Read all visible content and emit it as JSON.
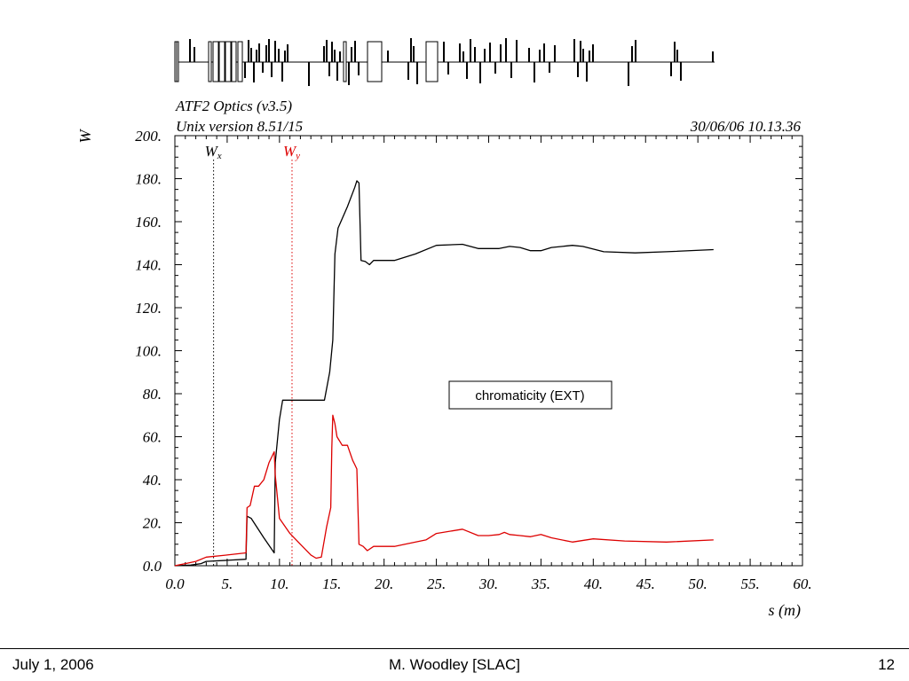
{
  "chart_data": {
    "type": "line",
    "title": "ATF2 Optics (v3.5)",
    "subtitle": "Unix version 8.51/15",
    "timestamp": "30/06/06  10.13.36",
    "xlabel": "s (m)",
    "ylabel": "W",
    "xlim": [
      0,
      60
    ],
    "ylim": [
      0,
      200
    ],
    "x_ticks": [
      0,
      5,
      10,
      15,
      20,
      25,
      30,
      35,
      40,
      45,
      50,
      55,
      60
    ],
    "x_tick_labels": [
      "0.0",
      "5.",
      "10.",
      "15.",
      "20.",
      "25.",
      "30.",
      "35.",
      "40.",
      "45.",
      "50.",
      "55.",
      "60."
    ],
    "y_ticks": [
      0,
      20,
      40,
      60,
      80,
      100,
      120,
      140,
      160,
      180,
      200
    ],
    "y_tick_labels": [
      "0.0",
      "20.",
      "40.",
      "60.",
      "80.",
      "100.",
      "120.",
      "140.",
      "160.",
      "180.",
      "200."
    ],
    "grid": false,
    "annotation": "chromaticity (EXT)",
    "series": [
      {
        "name": "Wx",
        "name_main": "W",
        "name_sub": "x",
        "color": "#000000",
        "marker_x": 3.7,
        "x": [
          0,
          1.5,
          2.5,
          3,
          5,
          6.8,
          6.9,
          7.3,
          8.5,
          9.5,
          9.6,
          10,
          10.3,
          12,
          13.5,
          14.3,
          14.8,
          15.1,
          15.3,
          15.6,
          16.5,
          17.2,
          17.4,
          17.6,
          17.8,
          18.2,
          18.6,
          19,
          20,
          21,
          23,
          25,
          27.5,
          29,
          31,
          32,
          33,
          34,
          35,
          36,
          38,
          39,
          41,
          44,
          47,
          51.5
        ],
        "y": [
          0,
          0.3,
          1,
          2,
          2.5,
          3,
          23,
          22,
          13,
          6,
          48,
          68,
          77,
          77,
          77,
          77,
          90,
          105,
          145,
          157,
          167,
          176,
          179,
          178,
          142,
          141.5,
          140,
          142,
          142,
          142,
          145,
          149,
          149.5,
          147.5,
          147.5,
          148.5,
          148,
          146.5,
          146.5,
          148,
          149,
          148.5,
          146,
          145.5,
          146,
          147
        ]
      },
      {
        "name": "Wy",
        "name_main": "W",
        "name_sub": "y",
        "color": "#dd0000",
        "marker_x": 11.2,
        "x": [
          0,
          1,
          2,
          3,
          5,
          6.8,
          6.9,
          7.2,
          7.6,
          8,
          8.5,
          9,
          9.5,
          9.6,
          10,
          11,
          12,
          13,
          13.5,
          14,
          14.5,
          14.9,
          15,
          15.1,
          15.3,
          15.5,
          16,
          16.5,
          17,
          17.2,
          17.4,
          17.6,
          18,
          18.4,
          19,
          20,
          21,
          22,
          24,
          25,
          27.5,
          29,
          30,
          31,
          31.5,
          32,
          33,
          34,
          35,
          36,
          38,
          40,
          43,
          47,
          51.5
        ],
        "y": [
          0,
          1,
          2,
          4,
          5,
          6,
          27,
          28,
          37,
          37,
          40,
          48,
          53,
          42,
          22,
          15,
          10,
          5,
          3.5,
          4,
          18,
          27,
          55,
          70,
          66,
          60,
          56,
          56,
          49,
          47,
          45,
          10,
          9,
          7,
          9,
          9,
          9,
          10,
          12,
          15,
          17,
          14,
          14,
          14.5,
          15.5,
          14.5,
          14,
          13.5,
          14.5,
          13,
          11,
          12.5,
          11.5,
          11,
          12
        ]
      }
    ]
  },
  "beamline": {
    "elements": [
      [
        197,
        201,
        "box"
      ],
      [
        199,
        201,
        "box"
      ],
      [
        214,
        "bar"
      ],
      [
        219,
        "bar"
      ],
      [
        235,
        238,
        "box"
      ],
      [
        240,
        246,
        "box"
      ],
      [
        247,
        253,
        "box"
      ],
      [
        254,
        260,
        "box"
      ],
      [
        261,
        266,
        "box"
      ],
      [
        268,
        273,
        "box"
      ],
      [
        276,
        "bar"
      ],
      [
        280,
        "bar"
      ],
      [
        283,
        "bar"
      ],
      [
        286,
        "bar"
      ],
      [
        289,
        "bar"
      ],
      [
        292,
        "bar"
      ],
      [
        296,
        "bar"
      ],
      [
        300,
        "bar"
      ],
      [
        303,
        "bar"
      ],
      [
        306,
        "bar"
      ],
      [
        310,
        "bar"
      ],
      [
        314,
        "bar"
      ],
      [
        318,
        "bar"
      ],
      [
        321,
        "bar"
      ],
      [
        324,
        "bar"
      ],
      [
        348,
        "bar"
      ],
      [
        365,
        "bar"
      ],
      [
        368,
        "bar"
      ],
      [
        371,
        "bar"
      ],
      [
        374,
        "bar"
      ],
      [
        377,
        "bar"
      ],
      [
        380,
        "bar"
      ],
      [
        383,
        "bar"
      ],
      [
        387,
        390,
        "box"
      ],
      [
        393,
        "bar"
      ],
      [
        396,
        "bar"
      ],
      [
        400,
        "bar"
      ],
      [
        404,
        "bar"
      ],
      [
        414,
        430,
        "box"
      ],
      [
        437,
        "bar"
      ],
      [
        460,
        "bar"
      ],
      [
        463,
        "bar"
      ],
      [
        466,
        "bar"
      ],
      [
        470,
        "bar"
      ],
      [
        480,
        493,
        "box"
      ],
      [
        500,
        "bar"
      ],
      [
        505,
        "bar"
      ],
      [
        518,
        "bar"
      ],
      [
        522,
        "bar"
      ],
      [
        526,
        "bar"
      ],
      [
        530,
        "bar"
      ],
      [
        535,
        "bar"
      ],
      [
        541,
        "bar"
      ],
      [
        546,
        "bar"
      ],
      [
        552,
        "bar"
      ],
      [
        558,
        "bar"
      ],
      [
        564,
        "bar"
      ],
      [
        570,
        "bar"
      ],
      [
        576,
        "bar"
      ],
      [
        582,
        "bar"
      ],
      [
        596,
        "bar"
      ],
      [
        602,
        "bar"
      ],
      [
        608,
        "bar"
      ],
      [
        613,
        "bar"
      ],
      [
        619,
        "bar"
      ],
      [
        625,
        "bar"
      ],
      [
        647,
        "bar"
      ],
      [
        651,
        "bar"
      ],
      [
        654,
        "bar"
      ],
      [
        657,
        "bar"
      ],
      [
        661,
        "bar"
      ],
      [
        664,
        "bar"
      ],
      [
        668,
        "bar"
      ],
      [
        708,
        "bar"
      ],
      [
        712,
        "bar"
      ],
      [
        716,
        "bar"
      ],
      [
        756,
        "bar"
      ],
      [
        760,
        "bar"
      ],
      [
        763,
        "bar"
      ],
      [
        767,
        "bar"
      ],
      [
        803,
        "bar"
      ]
    ]
  },
  "footer": {
    "date": "July 1, 2006",
    "author": "M. Woodley [SLAC]",
    "page": "12"
  }
}
